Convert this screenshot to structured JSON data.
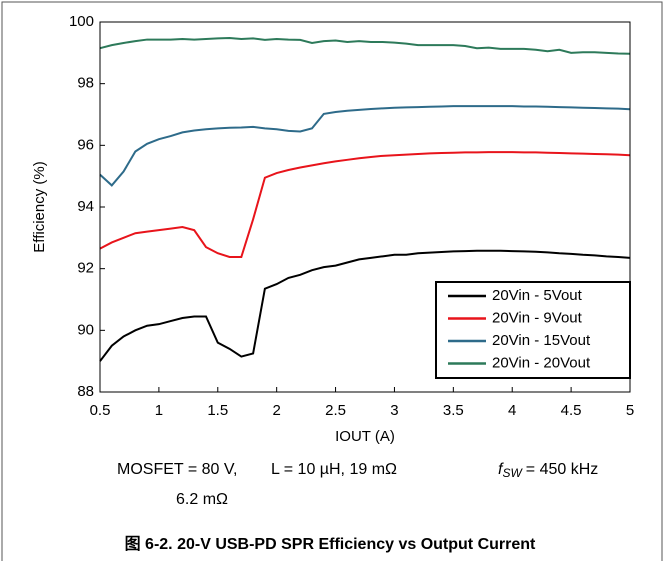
{
  "chart_data": {
    "type": "line",
    "xlabel": "IOUT (A)",
    "ylabel": "Efficiency (%)",
    "x": [
      0.5,
      0.6,
      0.7,
      0.8,
      0.9,
      1.0,
      1.1,
      1.2,
      1.3,
      1.4,
      1.5,
      1.6,
      1.7,
      1.8,
      1.9,
      2.0,
      2.1,
      2.2,
      2.3,
      2.4,
      2.5,
      2.6,
      2.7,
      2.8,
      2.9,
      3.0,
      3.1,
      3.2,
      3.3,
      3.4,
      3.5,
      3.6,
      3.7,
      3.8,
      3.9,
      4.0,
      4.1,
      4.2,
      4.3,
      4.4,
      4.5,
      4.6,
      4.7,
      4.8,
      4.9,
      5.0
    ],
    "series": [
      {
        "name": "20Vin - 5Vout",
        "color": "#000000",
        "values": [
          89.0,
          89.5,
          89.8,
          90.0,
          90.15,
          90.2,
          90.3,
          90.4,
          90.45,
          90.45,
          89.6,
          89.4,
          89.15,
          89.25,
          91.35,
          91.5,
          91.7,
          91.8,
          91.95,
          92.05,
          92.1,
          92.2,
          92.3,
          92.35,
          92.4,
          92.45,
          92.45,
          92.5,
          92.52,
          92.54,
          92.56,
          92.57,
          92.58,
          92.58,
          92.58,
          92.57,
          92.56,
          92.55,
          92.53,
          92.5,
          92.48,
          92.45,
          92.43,
          92.4,
          92.38,
          92.35
        ]
      },
      {
        "name": "20Vin - 9Vout",
        "color": "#e8141b",
        "values": [
          92.65,
          92.85,
          93.0,
          93.15,
          93.2,
          93.25,
          93.3,
          93.35,
          93.25,
          92.7,
          92.5,
          92.38,
          92.38,
          93.6,
          94.95,
          95.1,
          95.2,
          95.28,
          95.35,
          95.42,
          95.48,
          95.53,
          95.58,
          95.62,
          95.66,
          95.68,
          95.7,
          95.72,
          95.74,
          95.75,
          95.76,
          95.77,
          95.77,
          95.78,
          95.78,
          95.78,
          95.77,
          95.77,
          95.76,
          95.75,
          95.74,
          95.73,
          95.72,
          95.71,
          95.7,
          95.68
        ]
      },
      {
        "name": "20Vin - 15Vout",
        "color": "#2e6b8a",
        "values": [
          95.05,
          94.7,
          95.15,
          95.8,
          96.05,
          96.2,
          96.3,
          96.42,
          96.48,
          96.52,
          96.55,
          96.57,
          96.58,
          96.6,
          96.55,
          96.52,
          96.47,
          96.45,
          96.55,
          97.02,
          97.08,
          97.12,
          97.15,
          97.18,
          97.2,
          97.22,
          97.23,
          97.24,
          97.25,
          97.26,
          97.27,
          97.27,
          97.27,
          97.27,
          97.27,
          97.27,
          97.26,
          97.26,
          97.25,
          97.24,
          97.23,
          97.22,
          97.21,
          97.2,
          97.19,
          97.17
        ]
      },
      {
        "name": "20Vin - 20Vout",
        "color": "#2d7a5a",
        "values": [
          99.15,
          99.25,
          99.32,
          99.38,
          99.43,
          99.43,
          99.43,
          99.45,
          99.43,
          99.45,
          99.47,
          99.48,
          99.45,
          99.47,
          99.42,
          99.45,
          99.43,
          99.42,
          99.32,
          99.38,
          99.4,
          99.35,
          99.38,
          99.35,
          99.35,
          99.33,
          99.3,
          99.25,
          99.25,
          99.25,
          99.25,
          99.22,
          99.15,
          99.17,
          99.13,
          99.13,
          99.13,
          99.1,
          99.05,
          99.1,
          99.0,
          99.02,
          99.02,
          99.0,
          98.98,
          98.97
        ]
      }
    ],
    "xlim": [
      0.5,
      5
    ],
    "xticks": [
      0.5,
      1,
      1.5,
      2,
      2.5,
      3,
      3.5,
      4,
      4.5,
      5
    ],
    "ylim": [
      88,
      100
    ],
    "yticks": [
      88,
      90,
      92,
      94,
      96,
      98,
      100
    ],
    "legend": "lower right",
    "annotations": {
      "mosfet": "MOSFET = 80 V,",
      "mosfet2": "6.2 mΩ",
      "inductor": "L = 10 µH, 19 mΩ",
      "fsw": {
        "symbol": "f",
        "subscript": "SW",
        "text": "= 450 kHz"
      }
    },
    "caption": "图 6-2. 20-V USB-PD SPR Efficiency vs Output Current"
  }
}
